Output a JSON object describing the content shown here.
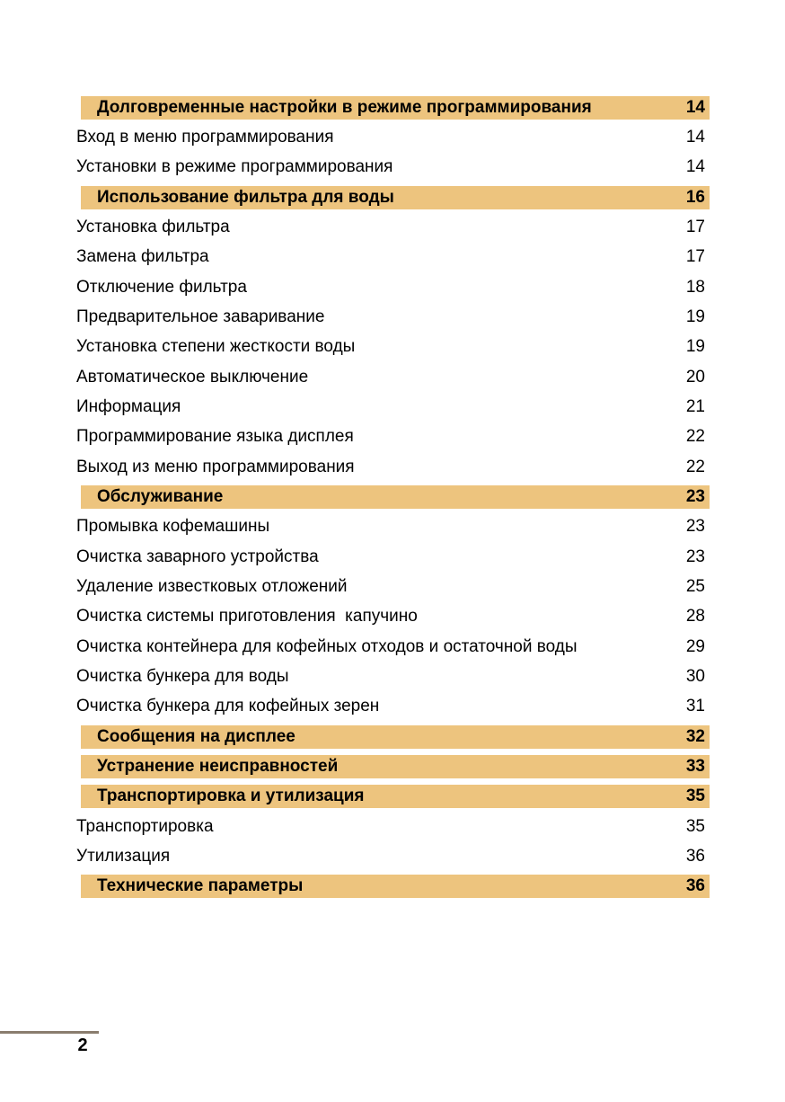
{
  "colors": {
    "section_bar": "#EDC47E",
    "footer_rule": "#8A7D6E",
    "text": "#000000"
  },
  "footer": {
    "page_number": "2"
  },
  "toc": {
    "entries": [
      {
        "type": "section",
        "label": "Долговременные настройки в режиме программирования",
        "page": "14"
      },
      {
        "type": "item",
        "label": "Вход в меню программирования",
        "page": "14"
      },
      {
        "type": "item",
        "label": "Установки в режиме программирования",
        "page": "14"
      },
      {
        "type": "section",
        "label": "Использование фильтра для воды",
        "page": "16"
      },
      {
        "type": "item",
        "label": "Установка фильтра",
        "page": "17"
      },
      {
        "type": "item",
        "label": "Замена фильтра",
        "page": "17"
      },
      {
        "type": "item",
        "label": "Отключение фильтра",
        "page": "18"
      },
      {
        "type": "item",
        "label": "Предварительное заваривание",
        "page": "19"
      },
      {
        "type": "item",
        "label": "Установка степени жесткости воды",
        "page": "19"
      },
      {
        "type": "item",
        "label": "Автоматическое выключение",
        "page": "20"
      },
      {
        "type": "item",
        "label": "Информация",
        "page": "21"
      },
      {
        "type": "item",
        "label": "Программирование языка дисплея",
        "page": "22"
      },
      {
        "type": "item",
        "label": "Выход из меню программирования",
        "page": "22"
      },
      {
        "type": "section",
        "label": "Обслуживание",
        "page": "23"
      },
      {
        "type": "item",
        "label": "Промывка кофемашины",
        "page": "23"
      },
      {
        "type": "item",
        "label": "Очистка заварного устройства",
        "page": "23"
      },
      {
        "type": "item",
        "label": "Удаление известковых отложений",
        "page": "25"
      },
      {
        "type": "item",
        "label": "Очистка системы приготовления  капучино",
        "page": "28"
      },
      {
        "type": "item",
        "label": "Очистка контейнера для кофейных отходов и остаточной воды",
        "page": "29"
      },
      {
        "type": "item",
        "label": "Очистка бункера для воды",
        "page": "30"
      },
      {
        "type": "item",
        "label": "Очистка бункера для кофейных зерен",
        "page": "31"
      },
      {
        "type": "section",
        "label": "Сообщения на дисплее",
        "page": "32"
      },
      {
        "type": "section",
        "label": "Устранение неисправностей",
        "page": "33"
      },
      {
        "type": "section",
        "label": "Транспортировка и утилизация",
        "page": "35"
      },
      {
        "type": "item",
        "label": "Транспортировка",
        "page": "35"
      },
      {
        "type": "item",
        "label": "Утилизация",
        "page": "36"
      },
      {
        "type": "section",
        "label": "Технические параметры",
        "page": "36"
      }
    ]
  }
}
